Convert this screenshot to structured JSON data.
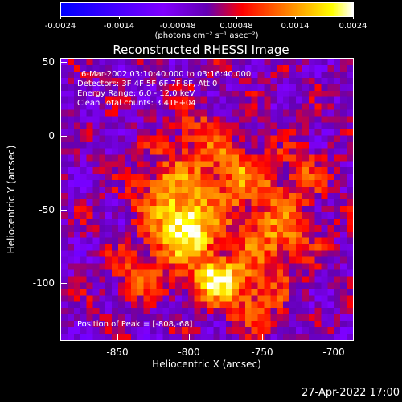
{
  "colorbar": {
    "labels": [
      "-0.0024",
      "-0.0014",
      "-0.00048",
      "0.00048",
      "0.0014",
      "0.0024"
    ],
    "unit": "(photons cm⁻² s⁻¹ asec⁻²)"
  },
  "title": "Reconstructed RHESSI Image",
  "annotations": {
    "time_range": "6-Mar-2002 03:10:40.000 to 03:16:40.000",
    "detectors": "Detectors: 3F 4F 5F 6F 7F 8F, Att 0",
    "energy": "Energy Range: 6.0 - 12.0 keV",
    "clean": "Clean     Total counts: 3.41E+04",
    "peak": "Position of Peak = [-808,-68]"
  },
  "axes": {
    "xlabel": "Heliocentric X (arcsec)",
    "ylabel": "Heliocentric Y (arcsec)",
    "x_ticks": [
      "-850",
      "-800",
      "-750",
      "-700"
    ],
    "y_ticks": [
      "50",
      "0",
      "-50",
      "-100"
    ]
  },
  "timestamp": "27-Apr-2022 17:00",
  "chart_data": {
    "type": "heatmap",
    "title": "Reconstructed RHESSI Image",
    "xlabel": "Heliocentric X (arcsec)",
    "ylabel": "Heliocentric Y (arcsec)",
    "xlim": [
      -890,
      -695
    ],
    "ylim": [
      -140,
      52
    ],
    "colorscale_range": [
      -0.0024,
      0.0024
    ],
    "peak": [
      -808,
      -68
    ]
  },
  "colors": {
    "colormap": [
      "#0000ff",
      "#8000ff",
      "#ff0000",
      "#ffa500",
      "#ffffff"
    ]
  }
}
